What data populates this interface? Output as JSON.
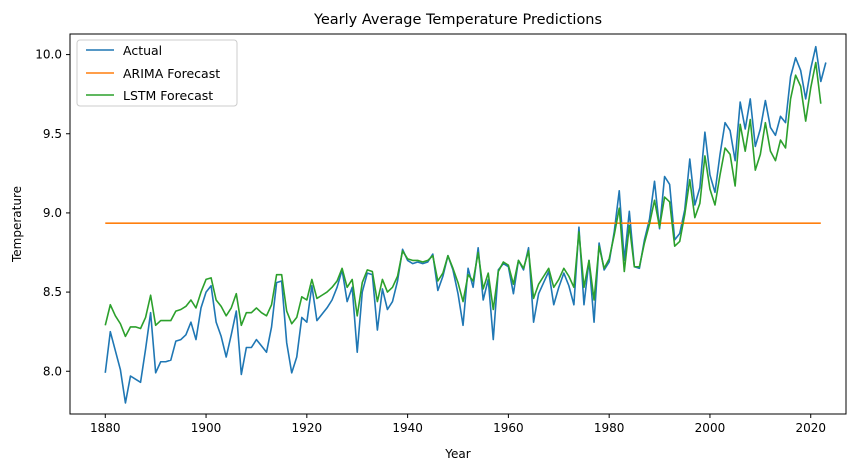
{
  "chart_data": {
    "type": "line",
    "title": "Yearly Average Temperature Predictions",
    "xlabel": "Year",
    "ylabel": "Temperature",
    "xlim": [
      1873,
      2027
    ],
    "ylim": [
      7.73,
      10.13
    ],
    "xticks": [
      1880,
      1900,
      1920,
      1940,
      1960,
      1980,
      2000,
      2020
    ],
    "yticks": [
      8.0,
      8.5,
      9.0,
      9.5,
      10.0
    ],
    "grid": false,
    "legend_position": "top-left",
    "x_start": 1880,
    "series": [
      {
        "name": "Actual",
        "color": "#1f77b4",
        "values": [
          7.99,
          8.25,
          8.13,
          8.01,
          7.8,
          7.97,
          7.95,
          7.93,
          8.14,
          8.37,
          7.99,
          8.06,
          8.06,
          8.07,
          8.19,
          8.2,
          8.23,
          8.31,
          8.2,
          8.4,
          8.5,
          8.54,
          8.31,
          8.22,
          8.09,
          8.23,
          8.38,
          7.98,
          8.15,
          8.15,
          8.2,
          8.16,
          8.12,
          8.28,
          8.56,
          8.57,
          8.18,
          7.99,
          8.09,
          8.34,
          8.31,
          8.54,
          8.32,
          8.36,
          8.4,
          8.45,
          8.53,
          8.64,
          8.44,
          8.53,
          8.12,
          8.5,
          8.62,
          8.61,
          8.26,
          8.52,
          8.39,
          8.44,
          8.57,
          8.77,
          8.7,
          8.68,
          8.69,
          8.68,
          8.69,
          8.74,
          8.51,
          8.6,
          8.73,
          8.64,
          8.49,
          8.29,
          8.65,
          8.53,
          8.78,
          8.45,
          8.58,
          8.2,
          8.64,
          8.68,
          8.66,
          8.49,
          8.7,
          8.64,
          8.78,
          8.31,
          8.49,
          8.56,
          8.63,
          8.42,
          8.53,
          8.62,
          8.54,
          8.42,
          8.91,
          8.42,
          8.7,
          8.31,
          8.81,
          8.64,
          8.69,
          8.88,
          9.14,
          8.7,
          9.01,
          8.66,
          8.65,
          8.83,
          8.96,
          9.2,
          8.9,
          9.23,
          9.18,
          8.83,
          8.87,
          9.02,
          9.34,
          9.05,
          9.16,
          9.51,
          9.24,
          9.13,
          9.37,
          9.57,
          9.52,
          9.33,
          9.7,
          9.53,
          9.72,
          9.42,
          9.53,
          9.71,
          9.54,
          9.49,
          9.61,
          9.57,
          9.86,
          9.98,
          9.9,
          9.72,
          9.91,
          10.05,
          9.83,
          9.95
        ]
      },
      {
        "name": "ARIMA Forecast",
        "color": "#ff7f0e",
        "values": [
          8.935,
          8.935
        ]
      },
      {
        "name": "LSTM Forecast",
        "color": "#2ca02c",
        "values": [
          8.29,
          8.42,
          8.35,
          8.3,
          8.22,
          8.28,
          8.28,
          8.27,
          8.34,
          8.48,
          8.29,
          8.32,
          8.32,
          8.32,
          8.38,
          8.39,
          8.41,
          8.45,
          8.4,
          8.5,
          8.58,
          8.59,
          8.45,
          8.41,
          8.35,
          8.4,
          8.49,
          8.29,
          8.37,
          8.37,
          8.4,
          8.37,
          8.35,
          8.42,
          8.61,
          8.61,
          8.38,
          8.3,
          8.34,
          8.47,
          8.45,
          8.58,
          8.46,
          8.48,
          8.5,
          8.53,
          8.57,
          8.65,
          8.53,
          8.58,
          8.35,
          8.56,
          8.64,
          8.63,
          8.44,
          8.58,
          8.5,
          8.53,
          8.6,
          8.76,
          8.71,
          8.7,
          8.7,
          8.69,
          8.7,
          8.73,
          8.57,
          8.62,
          8.73,
          8.65,
          8.56,
          8.44,
          8.61,
          8.57,
          8.75,
          8.52,
          8.62,
          8.39,
          8.63,
          8.69,
          8.67,
          8.55,
          8.7,
          8.65,
          8.76,
          8.46,
          8.55,
          8.6,
          8.65,
          8.53,
          8.58,
          8.65,
          8.6,
          8.53,
          8.88,
          8.53,
          8.7,
          8.45,
          8.79,
          8.65,
          8.71,
          8.86,
          9.03,
          8.63,
          8.92,
          8.66,
          8.66,
          8.81,
          8.93,
          9.08,
          8.91,
          9.1,
          9.07,
          8.79,
          8.82,
          8.99,
          9.21,
          8.97,
          9.06,
          9.36,
          9.15,
          9.05,
          9.24,
          9.41,
          9.37,
          9.17,
          9.56,
          9.39,
          9.59,
          9.27,
          9.37,
          9.57,
          9.39,
          9.33,
          9.46,
          9.41,
          9.72,
          9.87,
          9.8,
          9.58,
          9.79,
          9.95,
          9.69
        ]
      }
    ],
    "arima_x": [
      1880,
      2022
    ]
  }
}
